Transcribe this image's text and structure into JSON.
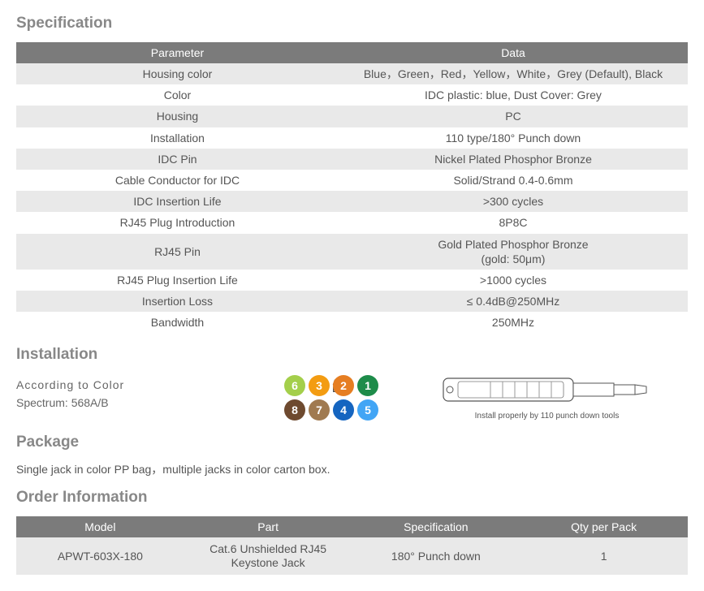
{
  "sections": {
    "specification_title": "Specification",
    "installation_title": "Installation",
    "package_title": "Package",
    "order_title": "Order Information"
  },
  "specification_table": {
    "header_left": "Parameter",
    "header_right": "Data",
    "rows": [
      {
        "param": "Housing color",
        "data": "Blue，Green，Red，Yellow，White，Grey (Default), Black"
      },
      {
        "param": "Color",
        "data": "IDC plastic: blue, Dust Cover: Grey"
      },
      {
        "param": "Housing",
        "data": "PC"
      },
      {
        "param": "Installation",
        "data": "110 type/180° Punch down"
      },
      {
        "param": "IDC Pin",
        "data": "Nickel Plated Phosphor Bronze"
      },
      {
        "param": "Cable Conductor for IDC",
        "data": "Solid/Strand 0.4-0.6mm"
      },
      {
        "param": "IDC Insertion  Life",
        "data": ">300 cycles"
      },
      {
        "param": "RJ45 Plug Introduction",
        "data": "8P8C"
      },
      {
        "param": "RJ45 Pin",
        "data": "Gold Plated Phosphor Bronze\n(gold: 50μm)"
      },
      {
        "param": "RJ45 Plug Insertion Life",
        "data": ">1000 cycles"
      },
      {
        "param": "Insertion Loss",
        "data": "≤ 0.4dB@250MHz"
      },
      {
        "param": "Bandwidth",
        "data": "250MHz"
      }
    ]
  },
  "installation": {
    "line1": "According to Color",
    "line2": "Spectrum: 568A/B",
    "tool_caption": "Install properly by 110 punch down tools",
    "dots": [
      {
        "n": "6",
        "bg": "#a4cf4b",
        "sub": ""
      },
      {
        "n": "3",
        "bg": "#f39c12",
        "sub": "A\nB"
      },
      {
        "n": "2",
        "bg": "#e67e22",
        "sub": ""
      },
      {
        "n": "1",
        "bg": "#1e8c4a",
        "sub": ""
      },
      {
        "n": "8",
        "bg": "#6e4a2f",
        "sub": ""
      },
      {
        "n": "7",
        "bg": "#a07a50",
        "sub": ""
      },
      {
        "n": "4",
        "bg": "#1565c0",
        "sub": ""
      },
      {
        "n": "5",
        "bg": "#42a5f5",
        "sub": ""
      }
    ]
  },
  "package": {
    "text": "Single jack in color PP bag，multiple jacks in color carton box."
  },
  "order_table": {
    "headers": [
      "Model",
      "Part",
      "Specification",
      "Qty per Pack"
    ],
    "row": {
      "model": "APWT-603X-180",
      "part": "Cat.6 Unshielded RJ45 Keystone Jack",
      "spec": "180° Punch down",
      "qty": "1"
    }
  },
  "colors": {
    "heading": "#888888",
    "table_header_bg": "#7b7b7b",
    "row_odd_bg": "#e9e9e9",
    "row_even_bg": "#ffffff",
    "text": "#555555"
  }
}
